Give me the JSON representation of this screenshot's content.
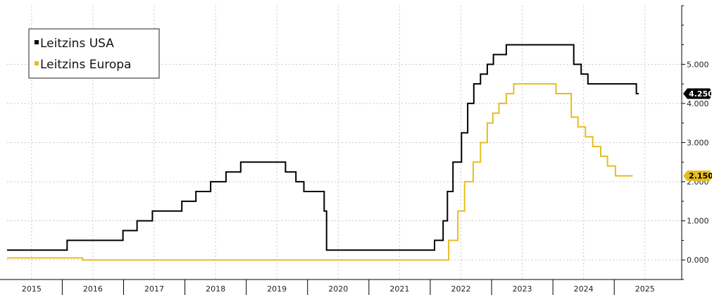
{
  "chart_data": {
    "type": "line",
    "step": true,
    "title": "",
    "xlabel": "",
    "ylabel": "",
    "xlim": [
      2014.6,
      2025.6
    ],
    "ylim": [
      -0.5,
      6.5
    ],
    "y_ticks": [
      0,
      1,
      2,
      3,
      4,
      5
    ],
    "y_tick_labels": [
      "0.000",
      "1.000",
      "2.000",
      "3.000",
      "4.000",
      "5.000"
    ],
    "x_tick_labels": [
      {
        "label": "2015",
        "x": 2015.0
      },
      {
        "label": "2016",
        "x": 2016.0
      },
      {
        "label": "2017",
        "x": 2017.0
      },
      {
        "label": "2018",
        "x": 2018.0
      },
      {
        "label": "2019",
        "x": 2019.0
      },
      {
        "label": "2020",
        "x": 2020.0
      },
      {
        "label": "2021",
        "x": 2021.0
      },
      {
        "label": "2022",
        "x": 2022.0
      },
      {
        "label": "2023",
        "x": 2023.0
      },
      {
        "label": "2024",
        "x": 2024.0
      },
      {
        "label": "2025",
        "x": 2025.0
      }
    ],
    "year_separators": [
      2015.5,
      2016.5,
      2017.5,
      2018.5,
      2019.5,
      2020.5,
      2021.5,
      2022.5,
      2023.5,
      2024.5
    ],
    "grid": true,
    "legend_position": "top-left",
    "series": [
      {
        "name": "Leitzins USA",
        "color": "#000000",
        "end_label": "4.250",
        "points": [
          [
            2014.6,
            0.25
          ],
          [
            2015.58,
            0.25
          ],
          [
            2015.58,
            0.5
          ],
          [
            2016.49,
            0.5
          ],
          [
            2016.49,
            0.75
          ],
          [
            2016.72,
            0.75
          ],
          [
            2016.72,
            1.0
          ],
          [
            2016.97,
            1.0
          ],
          [
            2016.97,
            1.25
          ],
          [
            2017.45,
            1.25
          ],
          [
            2017.45,
            1.5
          ],
          [
            2017.68,
            1.5
          ],
          [
            2017.68,
            1.75
          ],
          [
            2017.92,
            1.75
          ],
          [
            2017.92,
            2.0
          ],
          [
            2018.17,
            2.0
          ],
          [
            2018.17,
            2.25
          ],
          [
            2018.41,
            2.25
          ],
          [
            2018.41,
            2.5
          ],
          [
            2019.14,
            2.5
          ],
          [
            2019.14,
            2.25
          ],
          [
            2019.31,
            2.25
          ],
          [
            2019.31,
            2.0
          ],
          [
            2019.44,
            2.0
          ],
          [
            2019.44,
            1.75
          ],
          [
            2019.77,
            1.75
          ],
          [
            2019.77,
            1.25
          ],
          [
            2019.81,
            1.25
          ],
          [
            2019.81,
            0.25
          ],
          [
            2021.57,
            0.25
          ],
          [
            2021.57,
            0.5
          ],
          [
            2021.71,
            0.5
          ],
          [
            2021.71,
            1.0
          ],
          [
            2021.78,
            1.0
          ],
          [
            2021.78,
            1.75
          ],
          [
            2021.87,
            1.75
          ],
          [
            2021.87,
            2.5
          ],
          [
            2022.01,
            2.5
          ],
          [
            2022.01,
            3.25
          ],
          [
            2022.11,
            3.25
          ],
          [
            2022.11,
            4.0
          ],
          [
            2022.21,
            4.0
          ],
          [
            2022.21,
            4.5
          ],
          [
            2022.32,
            4.5
          ],
          [
            2022.32,
            4.75
          ],
          [
            2022.43,
            4.75
          ],
          [
            2022.43,
            5.0
          ],
          [
            2022.53,
            5.0
          ],
          [
            2022.53,
            5.25
          ],
          [
            2022.74,
            5.25
          ],
          [
            2022.74,
            5.5
          ],
          [
            2023.84,
            5.5
          ],
          [
            2023.84,
            5.0
          ],
          [
            2023.96,
            5.0
          ],
          [
            2023.96,
            4.75
          ],
          [
            2024.07,
            4.75
          ],
          [
            2024.07,
            4.5
          ],
          [
            2024.86,
            4.5
          ],
          [
            2024.86,
            4.25
          ],
          [
            2024.9,
            4.25
          ]
        ]
      },
      {
        "name": "Leitzins Europa",
        "color": "#e6bd20",
        "end_label": "2.150",
        "points": [
          [
            2014.6,
            0.05
          ],
          [
            2015.83,
            0.05
          ],
          [
            2015.83,
            0.0
          ],
          [
            2021.8,
            0.0
          ],
          [
            2021.8,
            0.5
          ],
          [
            2021.95,
            0.5
          ],
          [
            2021.95,
            1.25
          ],
          [
            2022.06,
            1.25
          ],
          [
            2022.06,
            2.0
          ],
          [
            2022.2,
            2.0
          ],
          [
            2022.2,
            2.5
          ],
          [
            2022.32,
            2.5
          ],
          [
            2022.32,
            3.0
          ],
          [
            2022.43,
            3.0
          ],
          [
            2022.43,
            3.5
          ],
          [
            2022.52,
            3.5
          ],
          [
            2022.52,
            3.75
          ],
          [
            2022.62,
            3.75
          ],
          [
            2022.62,
            4.0
          ],
          [
            2022.74,
            4.0
          ],
          [
            2022.74,
            4.25
          ],
          [
            2022.86,
            4.25
          ],
          [
            2022.86,
            4.5
          ],
          [
            2023.55,
            4.5
          ],
          [
            2023.55,
            4.25
          ],
          [
            2023.8,
            4.25
          ],
          [
            2023.8,
            3.65
          ],
          [
            2023.91,
            3.65
          ],
          [
            2023.91,
            3.4
          ],
          [
            2024.03,
            3.4
          ],
          [
            2024.03,
            3.15
          ],
          [
            2024.15,
            3.15
          ],
          [
            2024.15,
            2.9
          ],
          [
            2024.28,
            2.9
          ],
          [
            2024.28,
            2.65
          ],
          [
            2024.39,
            2.65
          ],
          [
            2024.39,
            2.4
          ],
          [
            2024.52,
            2.4
          ],
          [
            2024.52,
            2.15
          ],
          [
            2024.8,
            2.15
          ]
        ]
      }
    ]
  }
}
